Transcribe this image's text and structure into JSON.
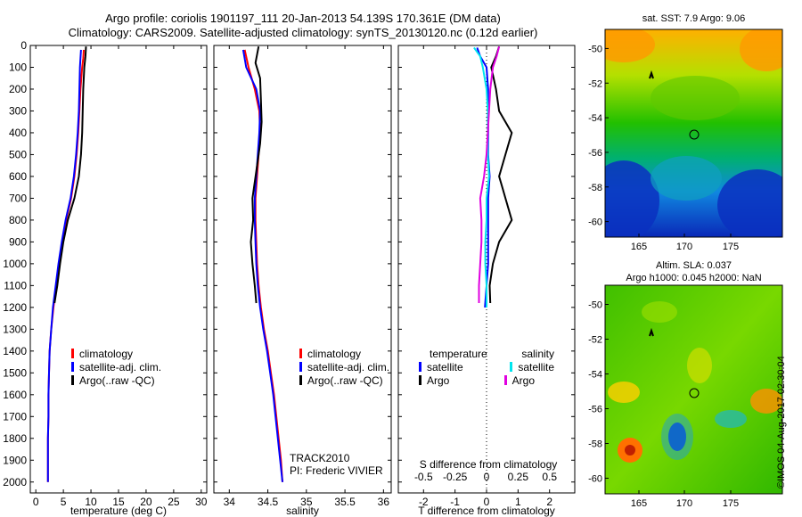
{
  "title": {
    "line1": "Argo profile: coriolis 1901197_111 20-Jan-2013 54.139S 170.361E (DM data)",
    "line2": "Climatology: CARS2009. Satellite-adjusted climatology: synTS_20130120.nc (0.12d earlier)"
  },
  "colors": {
    "climatology": "#ff0000",
    "satellite": "#0000ff",
    "argo": "#000000",
    "salinity_satellite": "#00e5ee",
    "salinity_argo": "#e000e0"
  },
  "depth_ticks": [
    "0",
    "100",
    "200",
    "300",
    "400",
    "500",
    "600",
    "700",
    "800",
    "900",
    "1000",
    "1100",
    "1200",
    "1300",
    "1400",
    "1500",
    "1600",
    "1700",
    "1800",
    "1900",
    "2000"
  ],
  "legends": {
    "climatology": "climatology",
    "satellite_adj": "satellite-adj. clim.",
    "argo": "Argo(..raw -QC)",
    "temperature_header": "temperature",
    "salinity_header": "salinity",
    "satellite": "satellite",
    "argo_short": "Argo"
  },
  "annotations": {
    "track": "TRACK2010",
    "pi": "PI: Frederic VIVIER",
    "s_diff_title": "S difference from climatology"
  },
  "maps": {
    "sst_title": "sat. SST: 7.9 Argo: 9.06",
    "sla_title1": "Altim. SLA: 0.037",
    "sla_title2": "Argo h1000: 0.045 h2000: NaN",
    "lat_ticks": [
      "-50",
      "-52",
      "-54",
      "-56",
      "-58",
      "-60"
    ],
    "lon_ticks": [
      "165",
      "170",
      "175"
    ],
    "stamp": "©IMOS 04-Aug-2017 02:30:04"
  },
  "chart_data": [
    {
      "type": "line",
      "xlabel": "temperature (deg C)",
      "ylabel": "",
      "xlim": [
        -1,
        31
      ],
      "ylim": [
        2050,
        0
      ],
      "x_ticks": [
        "0",
        "5",
        "10",
        "15",
        "20",
        "25",
        "30"
      ],
      "series": [
        {
          "name": "climatology",
          "color": "#ff0000",
          "points": [
            [
              8.7,
              20
            ],
            [
              8.6,
              60
            ],
            [
              8.4,
              100
            ],
            [
              8.1,
              200
            ],
            [
              7.9,
              300
            ],
            [
              7.7,
              400
            ],
            [
              7.4,
              500
            ],
            [
              7.0,
              600
            ],
            [
              6.4,
              700
            ],
            [
              5.5,
              800
            ],
            [
              4.8,
              900
            ],
            [
              4.2,
              1000
            ],
            [
              3.7,
              1100
            ],
            [
              3.2,
              1200
            ],
            [
              2.8,
              1300
            ],
            [
              2.5,
              1400
            ],
            [
              2.4,
              1500
            ],
            [
              2.3,
              1600
            ],
            [
              2.3,
              1700
            ],
            [
              2.2,
              1800
            ],
            [
              2.2,
              1900
            ],
            [
              2.2,
              2000
            ]
          ]
        },
        {
          "name": "satellite-adj. clim.",
          "color": "#0000ff",
          "points": [
            [
              8.2,
              20
            ],
            [
              8.1,
              60
            ],
            [
              8.0,
              100
            ],
            [
              7.9,
              200
            ],
            [
              7.8,
              300
            ],
            [
              7.6,
              400
            ],
            [
              7.3,
              500
            ],
            [
              6.9,
              600
            ],
            [
              6.3,
              700
            ],
            [
              5.4,
              800
            ],
            [
              4.7,
              900
            ],
            [
              4.1,
              1000
            ],
            [
              3.6,
              1100
            ],
            [
              3.1,
              1200
            ],
            [
              2.8,
              1300
            ],
            [
              2.5,
              1400
            ],
            [
              2.4,
              1500
            ],
            [
              2.3,
              1600
            ],
            [
              2.3,
              1700
            ],
            [
              2.2,
              1800
            ],
            [
              2.2,
              1900
            ],
            [
              2.2,
              2000
            ]
          ]
        },
        {
          "name": "Argo(..raw -QC)",
          "color": "#000000",
          "points": [
            [
              9.1,
              5
            ],
            [
              9.0,
              50
            ],
            [
              8.8,
              100
            ],
            [
              8.6,
              200
            ],
            [
              8.5,
              300
            ],
            [
              8.4,
              400
            ],
            [
              8.2,
              500
            ],
            [
              7.8,
              600
            ],
            [
              7.0,
              700
            ],
            [
              5.8,
              800
            ],
            [
              5.0,
              900
            ],
            [
              4.4,
              1000
            ],
            [
              3.9,
              1100
            ],
            [
              3.4,
              1180
            ]
          ]
        }
      ]
    },
    {
      "type": "line",
      "xlabel": "salinity",
      "ylabel": "",
      "xlim": [
        33.8,
        36.1
      ],
      "ylim": [
        2050,
        0
      ],
      "x_ticks": [
        "34",
        "34.5",
        "35",
        "35.5",
        "36"
      ],
      "series": [
        {
          "name": "climatology",
          "color": "#ff0000",
          "points": [
            [
              34.2,
              20
            ],
            [
              34.25,
              100
            ],
            [
              34.33,
              200
            ],
            [
              34.39,
              300
            ],
            [
              34.4,
              400
            ],
            [
              34.38,
              500
            ],
            [
              34.36,
              600
            ],
            [
              34.34,
              700
            ],
            [
              34.34,
              800
            ],
            [
              34.35,
              900
            ],
            [
              34.36,
              1000
            ],
            [
              34.38,
              1100
            ],
            [
              34.41,
              1200
            ],
            [
              34.45,
              1300
            ],
            [
              34.5,
              1400
            ],
            [
              34.54,
              1500
            ],
            [
              34.58,
              1600
            ],
            [
              34.61,
              1700
            ],
            [
              34.64,
              1800
            ],
            [
              34.67,
              1900
            ],
            [
              34.69,
              2000
            ]
          ]
        },
        {
          "name": "satellite-adj. clim.",
          "color": "#0000ff",
          "points": [
            [
              34.18,
              20
            ],
            [
              34.22,
              100
            ],
            [
              34.35,
              200
            ],
            [
              34.4,
              300
            ],
            [
              34.39,
              400
            ],
            [
              34.37,
              500
            ],
            [
              34.35,
              600
            ],
            [
              34.33,
              700
            ],
            [
              34.33,
              800
            ],
            [
              34.34,
              900
            ],
            [
              34.35,
              1000
            ],
            [
              34.37,
              1100
            ],
            [
              34.4,
              1200
            ],
            [
              34.44,
              1300
            ],
            [
              34.49,
              1400
            ],
            [
              34.53,
              1500
            ],
            [
              34.57,
              1600
            ],
            [
              34.6,
              1700
            ],
            [
              34.63,
              1800
            ],
            [
              34.66,
              1900
            ],
            [
              34.69,
              2000
            ]
          ]
        },
        {
          "name": "Argo(..raw -QC)",
          "color": "#000000",
          "points": [
            [
              34.38,
              5
            ],
            [
              34.34,
              80
            ],
            [
              34.4,
              150
            ],
            [
              34.41,
              250
            ],
            [
              34.42,
              350
            ],
            [
              34.4,
              450
            ],
            [
              34.36,
              550
            ],
            [
              34.3,
              700
            ],
            [
              34.31,
              800
            ],
            [
              34.28,
              900
            ],
            [
              34.3,
              1000
            ],
            [
              34.33,
              1100
            ],
            [
              34.35,
              1180
            ]
          ]
        }
      ]
    },
    {
      "type": "line",
      "xlabel": "T difference from climatology",
      "ylabel": "",
      "xlim": [
        -2.8,
        2.8
      ],
      "ylim": [
        2050,
        0
      ],
      "x_ticks": [
        "-2",
        "-1",
        "0",
        "1",
        "2"
      ],
      "x2label": "S difference from climatology",
      "x2_ticks": [
        "-0.5",
        "-0.25",
        "0",
        "0.25",
        "0.5"
      ],
      "x2lim": [
        -0.7,
        0.7
      ],
      "series": [
        {
          "name": "satellite",
          "group": "temperature",
          "color": "#0000ff",
          "points": [
            [
              -0.3,
              10
            ],
            [
              -0.2,
              50
            ],
            [
              0.0,
              100
            ],
            [
              0.05,
              200
            ],
            [
              0.05,
              300
            ],
            [
              0.05,
              400
            ],
            [
              0.05,
              500
            ],
            [
              0.1,
              600
            ],
            [
              0.05,
              700
            ],
            [
              0.05,
              800
            ],
            [
              0.05,
              900
            ],
            [
              0.05,
              1000
            ],
            [
              0.0,
              1100
            ],
            [
              -0.05,
              1200
            ]
          ]
        },
        {
          "name": "Argo",
          "group": "temperature",
          "color": "#000000",
          "points": [
            [
              0.4,
              5
            ],
            [
              0.3,
              50
            ],
            [
              0.15,
              100
            ],
            [
              0.3,
              200
            ],
            [
              0.4,
              300
            ],
            [
              0.8,
              400
            ],
            [
              0.6,
              500
            ],
            [
              0.4,
              600
            ],
            [
              0.5,
              650
            ],
            [
              0.6,
              700
            ],
            [
              0.8,
              800
            ],
            [
              0.4,
              900
            ],
            [
              0.2,
              1000
            ],
            [
              0.1,
              1100
            ],
            [
              0.12,
              1180
            ]
          ]
        },
        {
          "name": "satellite",
          "group": "salinity",
          "color": "#00e5ee",
          "points": [
            [
              -0.1,
              10
            ],
            [
              -0.05,
              50
            ],
            [
              -0.03,
              100
            ],
            [
              0.0,
              200
            ],
            [
              0.01,
              300
            ],
            [
              0.01,
              400
            ],
            [
              0.01,
              500
            ],
            [
              0.02,
              600
            ],
            [
              0.0,
              700
            ],
            [
              0.0,
              800
            ],
            [
              -0.01,
              900
            ],
            [
              -0.01,
              1000
            ],
            [
              0.0,
              1100
            ],
            [
              0.0,
              1200
            ]
          ]
        },
        {
          "name": "Argo",
          "group": "salinity",
          "color": "#e000e0",
          "points": [
            [
              0.1,
              5
            ],
            [
              0.08,
              50
            ],
            [
              0.05,
              100
            ],
            [
              0.03,
              200
            ],
            [
              0.02,
              300
            ],
            [
              0.01,
              400
            ],
            [
              0.0,
              500
            ],
            [
              -0.02,
              600
            ],
            [
              -0.05,
              700
            ],
            [
              -0.04,
              800
            ],
            [
              -0.04,
              900
            ],
            [
              -0.05,
              1000
            ],
            [
              -0.06,
              1100
            ],
            [
              -0.06,
              1180
            ]
          ]
        }
      ]
    }
  ]
}
